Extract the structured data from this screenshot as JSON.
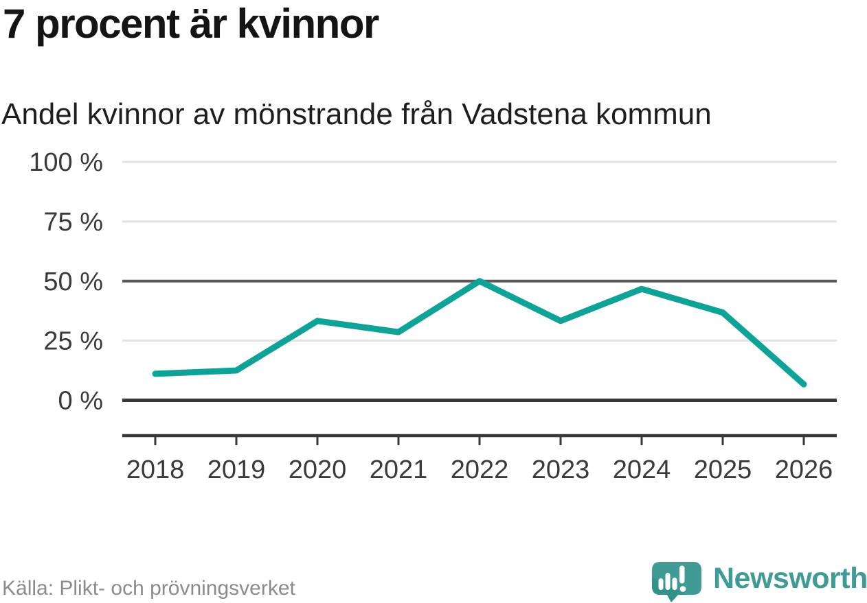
{
  "header": {
    "title": "7 procent är kvinnor",
    "subtitle": "Andel kvinnor av mönstrande från Vadstena kommun"
  },
  "chart_data": {
    "type": "line",
    "title": "7 procent är kvinnor",
    "subtitle": "Andel kvinnor av mönstrande från Vadstena kommun",
    "x": [
      "2018",
      "2019",
      "2020",
      "2021",
      "2022",
      "2023",
      "2024",
      "2025",
      "2026"
    ],
    "series": [
      {
        "name": "Andel kvinnor av mönstrande",
        "values": [
          11.1,
          12.5,
          33.3,
          28.6,
          50.0,
          33.3,
          46.7,
          36.8,
          6.7
        ]
      }
    ],
    "ylim": [
      0,
      100
    ],
    "yticks": [
      {
        "value": 100,
        "label": "100 %"
      },
      {
        "value": 75,
        "label": "75 %"
      },
      {
        "value": 50,
        "label": "50 %"
      },
      {
        "value": 25,
        "label": "25 %"
      },
      {
        "value": 0,
        "label": "0 %"
      }
    ],
    "grid": "horizontal",
    "legend": "none",
    "line_color": "#0fa398",
    "colors": {
      "grid_light": "#e3e3e3",
      "grid_dark": "#595959",
      "axis": "#383838",
      "tick_text": "#3a3a3a"
    }
  },
  "footer": {
    "source": "Källa: Plikt- och prövningsverket",
    "brand": "Newsworthy",
    "brand_color": "#3f9b93",
    "brand_shade_color": "#33908a"
  }
}
